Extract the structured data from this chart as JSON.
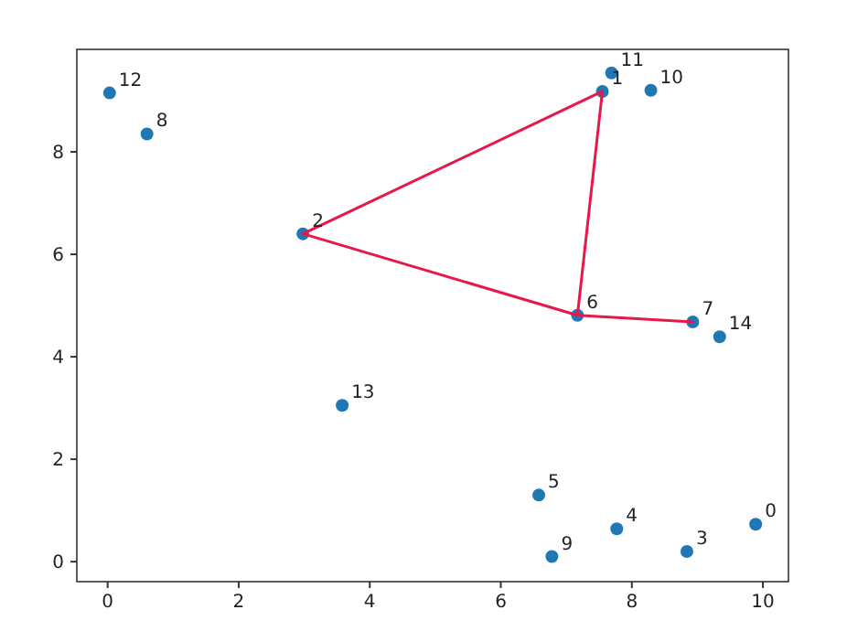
{
  "chart_data": {
    "type": "scatter",
    "xlim": [
      -0.47,
      10.39
    ],
    "ylim": [
      -0.39,
      10.0
    ],
    "xticks": [
      0,
      2,
      4,
      6,
      8,
      10
    ],
    "yticks": [
      0,
      2,
      4,
      6,
      8
    ],
    "grid": false,
    "marker": "circle",
    "series": [
      {
        "color": "#1f77b4",
        "x": [
          9.89,
          7.55,
          2.98,
          8.84,
          7.77,
          6.58,
          7.17,
          8.93,
          0.6,
          6.78,
          8.29,
          7.69,
          0.03,
          3.58,
          9.34
        ],
        "values": [
          0.73,
          9.18,
          6.4,
          0.2,
          0.64,
          1.3,
          4.81,
          4.68,
          8.35,
          0.1,
          9.2,
          9.54,
          9.15,
          3.05,
          4.39
        ]
      },
      {
        "type": "line",
        "color": "#e8174a",
        "marker": "none",
        "line_style": "solid",
        "x": [
          8.93,
          7.17,
          2.98,
          7.55,
          7.17
        ],
        "values": [
          4.68,
          4.81,
          6.4,
          9.18,
          4.81
        ]
      }
    ],
    "annotations": [
      {
        "text": "0",
        "x": 9.89,
        "y": 0.73
      },
      {
        "text": "1",
        "x": 7.55,
        "y": 9.18
      },
      {
        "text": "2",
        "x": 2.98,
        "y": 6.4
      },
      {
        "text": "3",
        "x": 8.84,
        "y": 0.2
      },
      {
        "text": "4",
        "x": 7.77,
        "y": 0.64
      },
      {
        "text": "5",
        "x": 6.58,
        "y": 1.3
      },
      {
        "text": "6",
        "x": 7.17,
        "y": 4.81
      },
      {
        "text": "7",
        "x": 8.93,
        "y": 4.68
      },
      {
        "text": "8",
        "x": 0.6,
        "y": 8.35
      },
      {
        "text": "9",
        "x": 6.78,
        "y": 0.1
      },
      {
        "text": "10",
        "x": 8.29,
        "y": 9.2
      },
      {
        "text": "11",
        "x": 7.69,
        "y": 9.54
      },
      {
        "text": "12",
        "x": 0.03,
        "y": 9.15
      },
      {
        "text": "13",
        "x": 3.58,
        "y": 3.05
      },
      {
        "text": "14",
        "x": 9.34,
        "y": 4.39
      }
    ]
  }
}
